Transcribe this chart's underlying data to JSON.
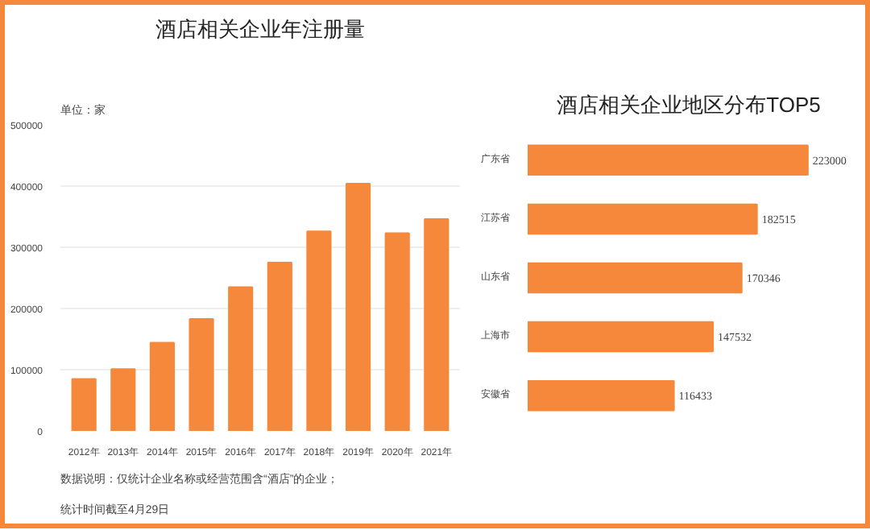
{
  "chart_data": [
    {
      "type": "bar",
      "title": "酒店相关企业年注册量",
      "subtitle": "单位：家",
      "categories": [
        "2012年",
        "2013年",
        "2014年",
        "2015年",
        "2016年",
        "2017年",
        "2018年",
        "2019年",
        "2020年",
        "2021年"
      ],
      "values": [
        85000,
        101000,
        144000,
        183000,
        235000,
        275000,
        326000,
        404000,
        323000,
        346000
      ],
      "color": "#f5883a",
      "ylim": [
        0,
        500000
      ],
      "yticks": [
        0,
        100000,
        200000,
        300000,
        400000,
        500000
      ],
      "grid": "y",
      "annotations": [
        "数据说明：仅统计企业名称或经营范围含“酒店”的企业；",
        "统计时间截至4月29日"
      ]
    },
    {
      "type": "bar",
      "orientation": "horizontal",
      "title": "酒店相关企业地区分布TOP5",
      "categories": [
        "广东省",
        "江苏省",
        "山东省",
        "上海市",
        "安徽省"
      ],
      "values": [
        223000,
        182515,
        170346,
        147532,
        116433
      ],
      "color": "#f5883a",
      "data_labels": true,
      "tick_labels": "y"
    }
  ]
}
